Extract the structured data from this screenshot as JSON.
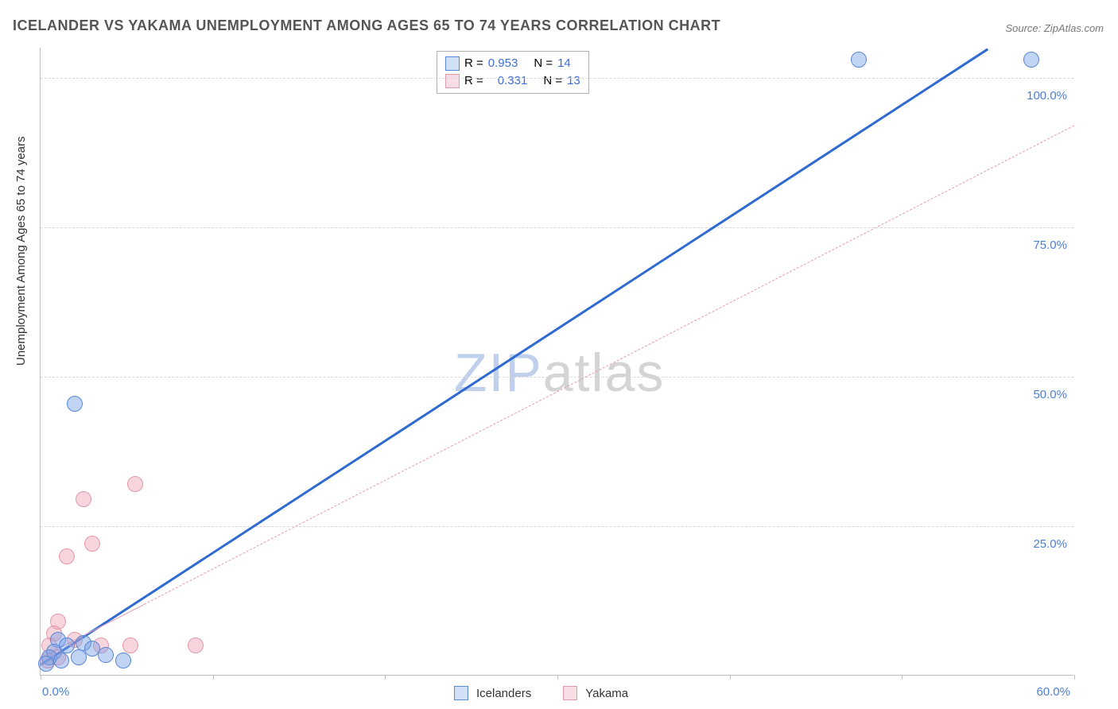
{
  "title": "ICELANDER VS YAKAMA UNEMPLOYMENT AMONG AGES 65 TO 74 YEARS CORRELATION CHART",
  "source": "Source: ZipAtlas.com",
  "ylabel": "Unemployment Among Ages 65 to 74 years",
  "watermark_a": "ZIP",
  "watermark_b": "atlas",
  "chart": {
    "type": "scatter",
    "xlim": [
      0,
      60
    ],
    "ylim": [
      0,
      105
    ],
    "x_ticks": [
      0,
      10,
      20,
      30,
      40,
      50,
      60
    ],
    "x_tick_labels": {
      "0": "0.0%",
      "60": "60.0%"
    },
    "y_ticks": [
      25,
      50,
      75,
      100
    ],
    "y_tick_labels": {
      "25": "25.0%",
      "50": "50.0%",
      "75": "75.0%",
      "100": "100.0%"
    },
    "grid_color": "#d8d8d8",
    "axis_color": "#c0c0c0",
    "background_color": "#ffffff",
    "label_color": "#4a7fd6",
    "label_fontsize": 15
  },
  "series": [
    {
      "name": "Icelanders",
      "color_fill": "rgba(120,160,230,0.45)",
      "color_stroke": "#5a88d8",
      "swatch_fill": "#cfe0f7",
      "swatch_stroke": "#5a88d8",
      "marker_r": 10,
      "R_label": "R =",
      "R": "0.953",
      "N_label": "N =",
      "N": "14",
      "trend": {
        "x1": 0,
        "y1": 2,
        "x2": 55,
        "y2": 105,
        "width": 3,
        "dash": "none",
        "color": "#2f6ad0"
      },
      "points": [
        {
          "x": 47.5,
          "y": 103
        },
        {
          "x": 57.5,
          "y": 103
        },
        {
          "x": 2.0,
          "y": 45.5
        },
        {
          "x": 1.0,
          "y": 6
        },
        {
          "x": 1.5,
          "y": 5
        },
        {
          "x": 2.5,
          "y": 5.5
        },
        {
          "x": 3.0,
          "y": 4.5
        },
        {
          "x": 3.8,
          "y": 3.5
        },
        {
          "x": 4.8,
          "y": 2.5
        },
        {
          "x": 0.8,
          "y": 4
        },
        {
          "x": 0.5,
          "y": 3
        },
        {
          "x": 1.2,
          "y": 2.5
        },
        {
          "x": 2.2,
          "y": 3
        },
        {
          "x": 0.3,
          "y": 2
        }
      ]
    },
    {
      "name": "Yakama",
      "color_fill": "rgba(240,160,180,0.45)",
      "color_stroke": "#e09aad",
      "swatch_fill": "#f8dde4",
      "swatch_stroke": "#e09aad",
      "marker_r": 10,
      "R_label": "R =",
      "R": "0.331",
      "N_label": "N =",
      "N": "13",
      "trend": {
        "x1": 0,
        "y1": 3,
        "x2": 60,
        "y2": 92,
        "width": 1.2,
        "dash": "6,5",
        "color": "#e59bb0",
        "solid_until_x": 6
      },
      "points": [
        {
          "x": 5.5,
          "y": 32
        },
        {
          "x": 2.5,
          "y": 29.5
        },
        {
          "x": 3.0,
          "y": 22
        },
        {
          "x": 1.5,
          "y": 20
        },
        {
          "x": 1.0,
          "y": 9
        },
        {
          "x": 0.8,
          "y": 7
        },
        {
          "x": 0.5,
          "y": 5
        },
        {
          "x": 2.0,
          "y": 6
        },
        {
          "x": 3.5,
          "y": 5
        },
        {
          "x": 5.2,
          "y": 5
        },
        {
          "x": 9.0,
          "y": 5
        },
        {
          "x": 1.0,
          "y": 3
        },
        {
          "x": 0.4,
          "y": 2.5
        }
      ]
    }
  ],
  "legend_bottom": [
    {
      "label": "Icelanders",
      "fill": "#cfe0f7",
      "stroke": "#5a88d8"
    },
    {
      "label": "Yakama",
      "fill": "#f8dde4",
      "stroke": "#e09aad"
    }
  ]
}
